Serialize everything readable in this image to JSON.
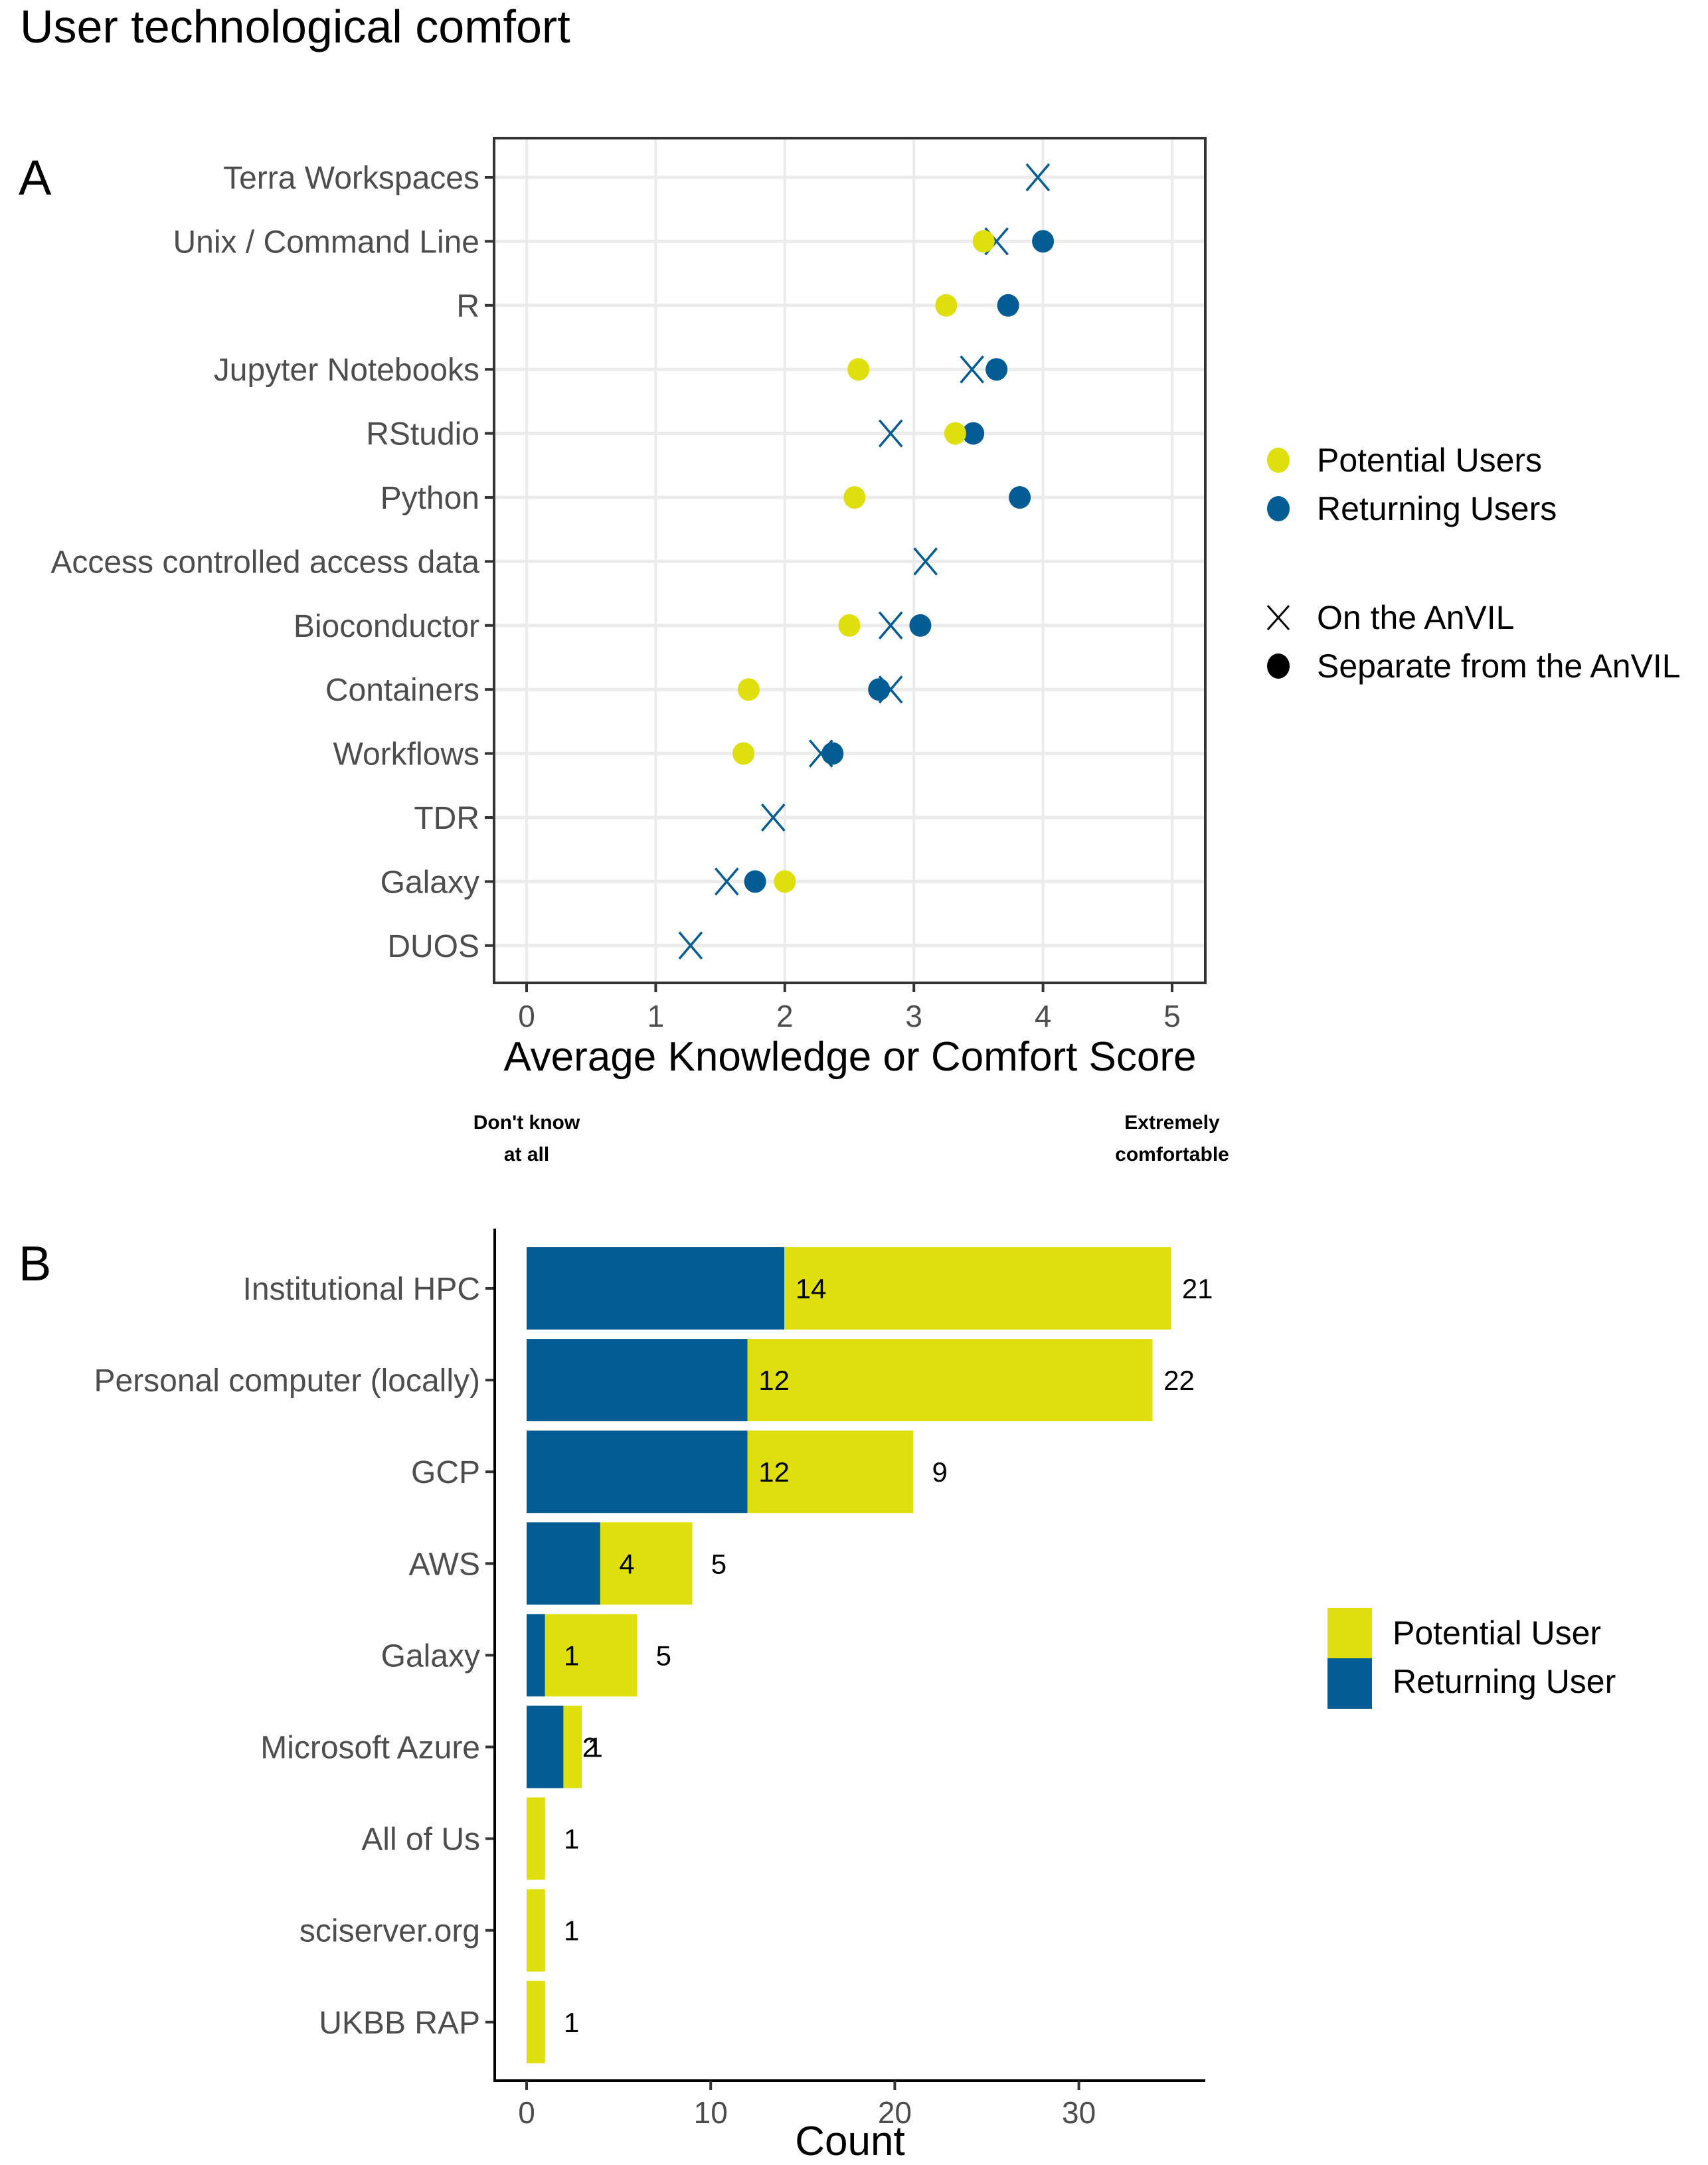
{
  "title": "User technological comfort",
  "colors": {
    "potential": "#DFDF0D",
    "returning": "#035C94",
    "grid": "#EBEBEB",
    "axis": "#333333"
  },
  "chart_data": [
    {
      "panel": "A",
      "type": "scatter",
      "xlabel": "Average Knowledge or Comfort Score",
      "ylabel": "",
      "xlim": [
        0,
        5
      ],
      "xticks": [
        "0",
        "1",
        "2",
        "3",
        "4",
        "5"
      ],
      "grid": true,
      "anchor_labels": {
        "low": [
          "Don't know",
          "at all"
        ],
        "high": [
          "Extremely",
          "comfortable"
        ]
      },
      "legend_position": "right",
      "legend": {
        "color": [
          {
            "key": "potential",
            "label": "Potential Users"
          },
          {
            "key": "returning",
            "label": "Returning Users"
          }
        ],
        "shape": [
          {
            "key": "on",
            "label": "On the AnVIL",
            "marker": "x"
          },
          {
            "key": "separate",
            "label": "Separate from the AnVIL",
            "marker": "circle"
          }
        ]
      },
      "categories": [
        "Terra Workspaces",
        "Unix / Command Line",
        "R",
        "Jupyter Notebooks",
        "RStudio",
        "Python",
        "Access controlled access data",
        "Bioconductor",
        "Containers",
        "Workflows",
        "TDR",
        "Galaxy",
        "DUOS"
      ],
      "series": [
        {
          "name": "Returning Users - On the AnVIL",
          "color": "returning",
          "marker": "x",
          "values": [
            3.96,
            3.64,
            null,
            3.45,
            2.82,
            null,
            3.09,
            2.82,
            2.82,
            2.28,
            1.91,
            1.55,
            1.27
          ]
        },
        {
          "name": "Returning Users - Separate from the AnVIL",
          "color": "returning",
          "marker": "circle",
          "values": [
            null,
            4.0,
            3.73,
            3.64,
            3.46,
            3.82,
            null,
            3.05,
            2.73,
            2.37,
            null,
            1.77,
            null
          ]
        },
        {
          "name": "Potential Users - Separate from the AnVIL",
          "color": "potential",
          "marker": "circle",
          "values": [
            null,
            3.54,
            3.25,
            2.57,
            3.32,
            2.54,
            null,
            2.5,
            1.72,
            1.68,
            null,
            2.0,
            null
          ]
        }
      ]
    },
    {
      "panel": "B",
      "type": "bar",
      "orientation": "horizontal",
      "stacked": true,
      "xlabel": "Count",
      "ylabel": "",
      "xlim": [
        0,
        36
      ],
      "xticks": [
        "0",
        "10",
        "20",
        "30"
      ],
      "grid": false,
      "legend_position": "right",
      "legend": [
        {
          "key": "potential",
          "label": "Potential User"
        },
        {
          "key": "returning",
          "label": "Returning User"
        }
      ],
      "categories": [
        "Institutional HPC",
        "Personal computer (locally)",
        "GCP",
        "AWS",
        "Galaxy",
        "Microsoft Azure",
        "All of Us",
        "sciserver.org",
        "UKBB RAP"
      ],
      "series": [
        {
          "name": "Returning User",
          "color": "returning",
          "values": [
            14,
            12,
            12,
            4,
            1,
            2,
            0,
            0,
            0
          ]
        },
        {
          "name": "Potential User",
          "color": "potential",
          "values": [
            21,
            22,
            9,
            5,
            5,
            1,
            1,
            1,
            1
          ]
        }
      ]
    }
  ]
}
